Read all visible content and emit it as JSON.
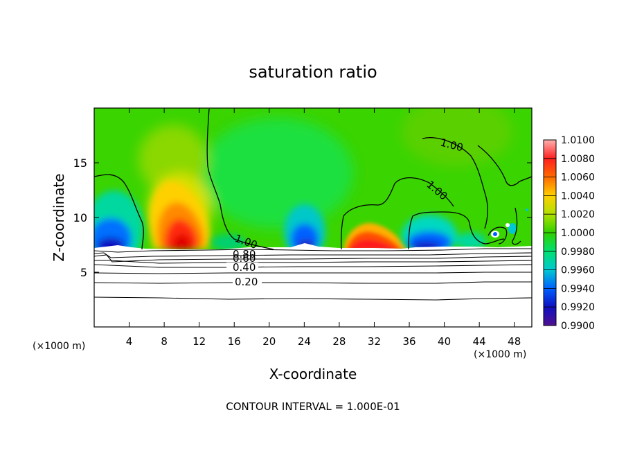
{
  "chart_data": {
    "type": "heatmap",
    "title": "saturation ratio",
    "xlabel": "X-coordinate",
    "ylabel": "Z-coordinate",
    "x_units_left": "(×1000 m)",
    "x_units_right": "(×1000 m)",
    "x_ticks": [
      "4",
      "8",
      "12",
      "16",
      "20",
      "24",
      "28",
      "32",
      "36",
      "40",
      "44",
      "48"
    ],
    "x_tick_values": [
      4,
      8,
      12,
      16,
      20,
      24,
      28,
      32,
      36,
      40,
      44,
      48
    ],
    "y_ticks": [
      "5",
      "10",
      "15"
    ],
    "y_tick_values": [
      5,
      10,
      15
    ],
    "xlim": [
      0,
      50
    ],
    "ylim": [
      0,
      20
    ],
    "footer": "CONTOUR INTERVAL = 1.000E-01",
    "colorbar": {
      "labels": [
        "1.0100",
        "1.0080",
        "1.0060",
        "1.0040",
        "1.0020",
        "1.0000",
        "0.9980",
        "0.9960",
        "0.9940",
        "0.9920",
        "0.9900"
      ],
      "values": [
        1.01,
        1.008,
        1.006,
        1.004,
        1.002,
        1.0,
        0.998,
        0.996,
        0.994,
        0.992,
        0.99
      ],
      "colors": [
        "#ff9090",
        "#ff2020",
        "#ff6a00",
        "#ffd000",
        "#7ed000",
        "#30d000",
        "#00e070",
        "#00c8d0",
        "#0060ff",
        "#1010c0",
        "#501090"
      ]
    },
    "contour_labels": [
      {
        "text": "1.00",
        "x": 15.7,
        "z": 7.9,
        "rotation": 20
      },
      {
        "text": "1.00",
        "x": 40.5,
        "z": 16.8,
        "rotation": 15
      },
      {
        "text": "1.00",
        "x": 39.2,
        "z": 12.5,
        "rotation": 45
      },
      {
        "text": "0.80",
        "x": 17.2,
        "z": 6.9,
        "rotation": 0
      },
      {
        "text": "0.60",
        "x": 17.2,
        "z": 6.2,
        "rotation": 0
      },
      {
        "text": "0.40",
        "x": 17.2,
        "z": 5.5,
        "rotation": 0
      },
      {
        "text": "0.20",
        "x": 17.2,
        "z": 4.1,
        "rotation": 0
      }
    ]
  }
}
